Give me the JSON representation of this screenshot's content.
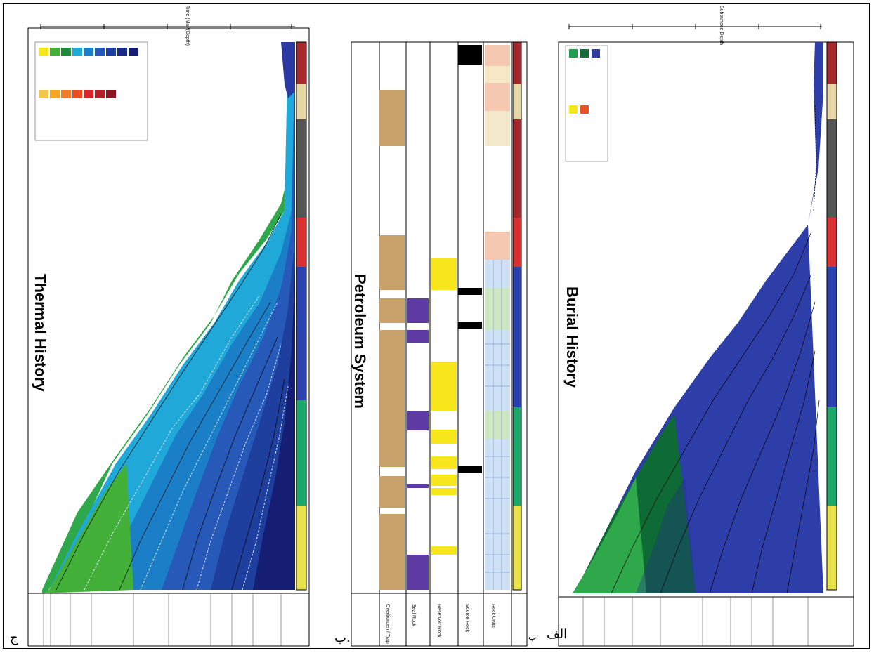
{
  "panels": {
    "thermal": {
      "title": "Thermal History",
      "corner": "ج",
      "axis_top": "Time (Ma)/(Depth)"
    },
    "petroleum": {
      "title": "Petroleum System",
      "corner": "ب.",
      "bottom_label": "ب"
    },
    "burial": {
      "title": "Burial History",
      "corner": "الف",
      "axis_top": "Subsurface Depth"
    }
  },
  "petroleum_rows": [
    "Rock Units",
    "Source Rock",
    "Reservoir Rock",
    "Seal Rock",
    "Overburden / Trap"
  ],
  "thermal_legend_colors": [
    "#f4e71d",
    "#43b03a",
    "#1e8a3a",
    "#1fa8d8",
    "#1b7fc8",
    "#2659b8",
    "#1e3f9e",
    "#1a2a88",
    "#161e73",
    "#f2c54c",
    "#f5a623",
    "#f07c2c",
    "#ea4d24",
    "#d8262a",
    "#b51f2a",
    "#8c1522"
  ],
  "burial_legend_colors": [
    "#1f9e52",
    "#156b37",
    "#2f3c9d",
    "#f4e71d",
    "#e8522a"
  ],
  "colors": {
    "burial_fill": "#2e3ea8",
    "burial_fill_dark": "#1f2b8c",
    "green_dark": "#0f6b35",
    "green_light": "#2ea84b",
    "strat_red": "#a4282d",
    "strat_tan": "#e8d7a6",
    "strat_darkgray": "#555555",
    "strat_bright_red": "#d93131",
    "strat_blue": "#2b42b0",
    "strat_green": "#1da86b",
    "strat_yellow": "#e8e24a",
    "source_tan": "#c8a06a",
    "reservoir_yellow": "#f7e61c",
    "seal_purple": "#5e3aa3",
    "black": "#000000"
  }
}
